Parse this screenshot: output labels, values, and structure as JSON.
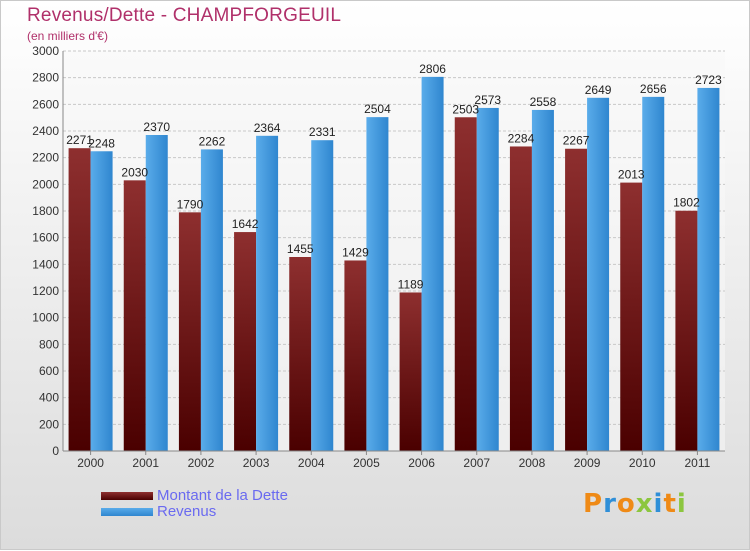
{
  "title": "Revenus/Dette - CHAMPFORGEUIL",
  "subtitle": "(en milliers d'€)",
  "colors": {
    "title": "#b0306a",
    "dette": "#7a1f1f",
    "revenus": "#3f97dd",
    "legend_text": "#6a6af0"
  },
  "legend": {
    "dette": "Montant de la Dette",
    "revenus": "Revenus"
  },
  "brand": {
    "p": "P",
    "r": "r",
    "o": "o",
    "x": "x",
    "i": "i",
    "t": "t",
    "i2": "i"
  },
  "chart_data": {
    "type": "bar",
    "title": "Revenus/Dette - CHAMPFORGEUIL",
    "subtitle": "(en milliers d'€)",
    "categories": [
      "2000",
      "2001",
      "2002",
      "2003",
      "2004",
      "2005",
      "2006",
      "2007",
      "2008",
      "2009",
      "2010",
      "2011"
    ],
    "series": [
      {
        "name": "Montant de la Dette",
        "values": [
          2271,
          2030,
          1790,
          1642,
          1455,
          1429,
          1189,
          2503,
          2284,
          2267,
          2013,
          1802
        ]
      },
      {
        "name": "Revenus",
        "values": [
          2248,
          2370,
          2262,
          2364,
          2331,
          2504,
          2806,
          2573,
          2558,
          2649,
          2656,
          2723
        ]
      }
    ],
    "ylim": [
      0,
      3000
    ],
    "yticks": [
      0,
      200,
      400,
      600,
      800,
      1000,
      1200,
      1400,
      1600,
      1800,
      2000,
      2200,
      2400,
      2600,
      2800,
      3000
    ],
    "grid": true,
    "legend_position": "bottom-left"
  }
}
